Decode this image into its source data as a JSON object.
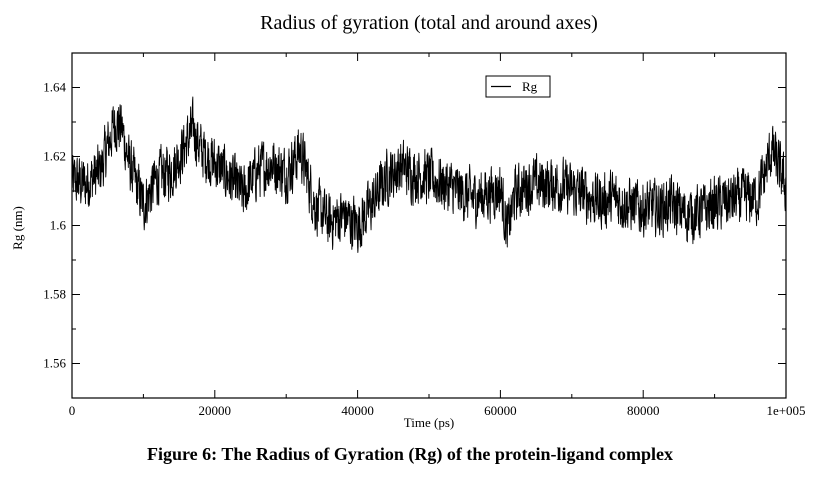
{
  "chart_data": {
    "type": "line",
    "title": "Radius of gyration (total and around axes)",
    "xlabel": "Time (ps)",
    "ylabel": "Rg (nm)",
    "xlim": [
      0,
      100000
    ],
    "ylim": [
      1.55,
      1.65
    ],
    "x_ticks": [
      {
        "value": 0,
        "label": "0"
      },
      {
        "value": 20000,
        "label": "20000"
      },
      {
        "value": 40000,
        "label": "40000"
      },
      {
        "value": 60000,
        "label": "60000"
      },
      {
        "value": 80000,
        "label": "80000"
      },
      {
        "value": 100000,
        "label": "1e+005"
      }
    ],
    "y_ticks": [
      {
        "value": 1.56,
        "label": "1.56"
      },
      {
        "value": 1.58,
        "label": "1.58"
      },
      {
        "value": 1.6,
        "label": "1.6"
      },
      {
        "value": 1.62,
        "label": "1.62"
      },
      {
        "value": 1.64,
        "label": "1.64"
      }
    ],
    "legend": {
      "position": "top-right",
      "entries": [
        "Rg"
      ]
    },
    "grid": false,
    "series": [
      {
        "name": "Rg",
        "color": "#000000",
        "x": [
          0,
          2000,
          4000,
          6000,
          7000,
          8000,
          10000,
          12000,
          14000,
          16000,
          17000,
          18000,
          20000,
          22000,
          24000,
          26000,
          28000,
          30000,
          32000,
          34000,
          36000,
          38000,
          40000,
          42000,
          44000,
          46000,
          48000,
          50000,
          52000,
          54000,
          56000,
          58000,
          60000,
          61000,
          62000,
          64000,
          66000,
          68000,
          70000,
          72000,
          74000,
          76000,
          78000,
          80000,
          82000,
          84000,
          86000,
          88000,
          90000,
          92000,
          94000,
          96000,
          98000,
          100000
        ],
        "values": [
          1.613,
          1.612,
          1.616,
          1.63,
          1.628,
          1.618,
          1.606,
          1.614,
          1.616,
          1.624,
          1.628,
          1.622,
          1.618,
          1.614,
          1.609,
          1.616,
          1.618,
          1.615,
          1.622,
          1.606,
          1.601,
          1.603,
          1.6,
          1.606,
          1.614,
          1.617,
          1.615,
          1.614,
          1.612,
          1.61,
          1.608,
          1.609,
          1.611,
          1.598,
          1.609,
          1.612,
          1.612,
          1.612,
          1.61,
          1.609,
          1.607,
          1.608,
          1.606,
          1.605,
          1.605,
          1.606,
          1.603,
          1.604,
          1.606,
          1.607,
          1.608,
          1.608,
          1.622,
          1.611
        ],
        "noise_amplitude": 0.007
      }
    ]
  },
  "caption": "Figure 6: The Radius of Gyration (Rg) of  the protein-ligand complex"
}
